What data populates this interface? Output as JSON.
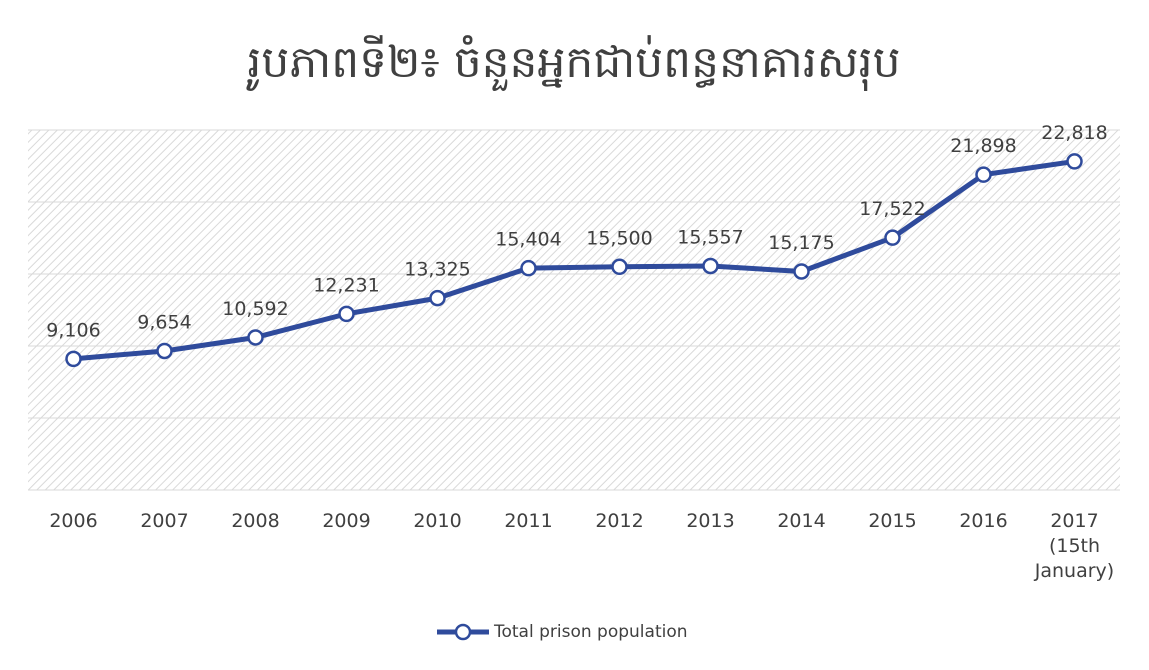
{
  "chart_data": {
    "type": "line",
    "title": "រូបភាពទី២៖ ចំនួនអ្នកជាប់ពន្ធនាគារសរុប",
    "categories": [
      "2006",
      "2007",
      "2008",
      "2009",
      "2010",
      "2011",
      "2012",
      "2013",
      "2014",
      "2015",
      "2016",
      "2017 (15th January)"
    ],
    "series": [
      {
        "name": "Total prison population",
        "color": "#2f4b9c",
        "values": [
          9106,
          9654,
          10592,
          12231,
          13325,
          15404,
          15500,
          15557,
          15175,
          17522,
          21898,
          22818
        ],
        "value_labels": [
          "9,106",
          "9,654",
          "10,592",
          "12,231",
          "13,325",
          "15,404",
          "15,500",
          "15,557",
          "15,175",
          "17,522",
          "21,898",
          "22,818"
        ]
      }
    ],
    "ylim": [
      0,
      25000
    ],
    "yticks": [
      0,
      5000,
      10000,
      15000,
      20000,
      25000
    ],
    "grid": true,
    "legend": "bottom"
  }
}
